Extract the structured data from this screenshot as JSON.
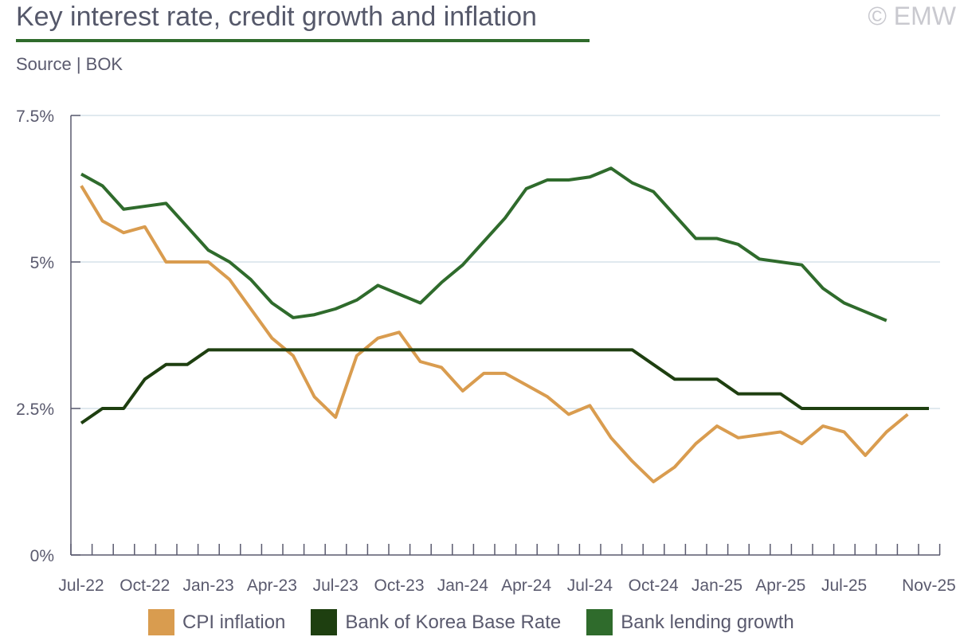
{
  "header": {
    "title": "Key interest rate, credit growth and inflation",
    "source": "Source | BOK",
    "copyright": "© EMW"
  },
  "chart_data": {
    "type": "line",
    "title": "Key interest rate, credit growth and inflation",
    "xlabel": "",
    "ylabel": "",
    "ylim": [
      0,
      7.5
    ],
    "y_ticks": [
      "0%",
      "2.5%",
      "5%",
      "7.5%"
    ],
    "y_tick_values": [
      0,
      2.5,
      5,
      7.5
    ],
    "x_tick_labels": [
      "Jul-22",
      "Oct-22",
      "Jan-23",
      "Apr-23",
      "Jul-23",
      "Oct-23",
      "Jan-24",
      "Apr-24",
      "Jul-24",
      "Oct-24",
      "Jan-25",
      "Apr-25",
      "Jul-25",
      "Nov-25"
    ],
    "x_tick_label_month_index": [
      0,
      3,
      6,
      9,
      12,
      15,
      18,
      21,
      24,
      27,
      30,
      33,
      36,
      40
    ],
    "months_count": 41,
    "grid": true,
    "legend_position": "bottom",
    "series": [
      {
        "name": "CPI inflation",
        "color": "#d99c4f",
        "values": [
          6.3,
          5.7,
          5.5,
          5.6,
          5.0,
          5.0,
          5.0,
          4.7,
          4.2,
          3.7,
          3.4,
          2.7,
          2.35,
          3.4,
          3.7,
          3.8,
          3.3,
          3.2,
          2.8,
          3.1,
          3.1,
          2.9,
          2.7,
          2.4,
          2.55,
          2.0,
          1.6,
          1.25,
          1.5,
          1.9,
          2.2,
          2.0,
          2.05,
          2.1,
          1.9,
          2.2,
          2.1,
          1.7,
          2.1,
          2.4
        ]
      },
      {
        "name": "Bank of Korea Base Rate",
        "color": "#1e3f10",
        "values": [
          2.25,
          2.5,
          2.5,
          3.0,
          3.25,
          3.25,
          3.5,
          3.5,
          3.5,
          3.5,
          3.5,
          3.5,
          3.5,
          3.5,
          3.5,
          3.5,
          3.5,
          3.5,
          3.5,
          3.5,
          3.5,
          3.5,
          3.5,
          3.5,
          3.5,
          3.5,
          3.5,
          3.25,
          3.0,
          3.0,
          3.0,
          2.75,
          2.75,
          2.75,
          2.5,
          2.5,
          2.5,
          2.5,
          2.5,
          2.5,
          2.5
        ]
      },
      {
        "name": "Bank lending growth",
        "color": "#2f6b2c",
        "values": [
          6.5,
          6.3,
          5.9,
          5.95,
          6.0,
          5.6,
          5.2,
          5.0,
          4.7,
          4.3,
          4.05,
          4.1,
          4.2,
          4.35,
          4.6,
          4.45,
          4.3,
          4.65,
          4.95,
          5.35,
          5.75,
          6.25,
          6.4,
          6.4,
          6.45,
          6.6,
          6.35,
          6.2,
          5.8,
          5.4,
          5.4,
          5.3,
          5.05,
          5.0,
          4.95,
          4.55,
          4.3,
          4.15,
          4.0
        ]
      }
    ]
  }
}
